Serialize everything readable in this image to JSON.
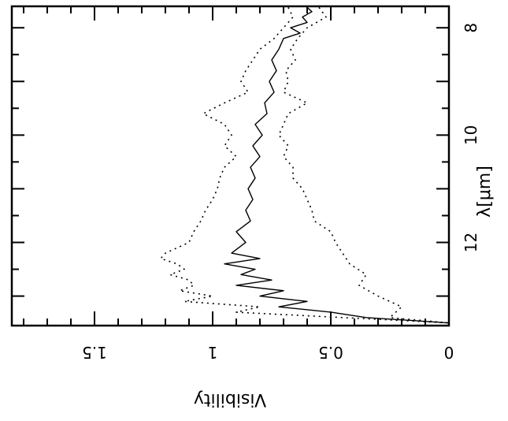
{
  "chart_data": {
    "type": "line",
    "orientation": "rotated-90-clockwise",
    "xlabel": "λ[μm]",
    "ylabel": "Visibility",
    "xlim": [
      7.6,
      13.55
    ],
    "ylim": [
      0,
      1.85
    ],
    "x_ticks_labeled": [
      8,
      10,
      12
    ],
    "x_ticks_all": [
      8,
      8.5,
      9,
      9.5,
      10,
      10.5,
      11,
      11.5,
      12,
      12.5,
      13
    ],
    "y_ticks_labeled": [
      0,
      0.5,
      1,
      1.5
    ],
    "y_ticks_all": [
      0,
      0.1,
      0.2,
      0.3,
      0.4,
      0.5,
      0.6,
      0.7,
      0.8,
      0.9,
      1.0,
      1.1,
      1.2,
      1.3,
      1.4,
      1.5,
      1.6,
      1.7,
      1.8
    ],
    "y_tick_display": [
      "0",
      "0.5",
      "1",
      "1.5"
    ],
    "x_tick_display": [
      "8",
      "10",
      "12"
    ],
    "grid": false,
    "series": [
      {
        "style": "solid",
        "x": [
          7.62,
          7.7,
          7.8,
          7.9,
          8.0,
          8.1,
          8.2,
          8.4,
          8.6,
          8.8,
          9.0,
          9.2,
          9.4,
          9.6,
          9.8,
          10.0,
          10.2,
          10.4,
          10.6,
          10.8,
          11.0,
          11.2,
          11.4,
          11.6,
          11.8,
          12.0,
          12.2,
          12.3,
          12.4,
          12.5,
          12.6,
          12.7,
          12.8,
          12.9,
          13.0,
          13.1,
          13.2,
          13.3,
          13.4,
          13.5
        ],
        "y": [
          0.6,
          0.58,
          0.62,
          0.6,
          0.67,
          0.63,
          0.7,
          0.72,
          0.75,
          0.73,
          0.76,
          0.74,
          0.78,
          0.77,
          0.82,
          0.79,
          0.83,
          0.8,
          0.84,
          0.82,
          0.85,
          0.83,
          0.86,
          0.84,
          0.9,
          0.86,
          0.92,
          0.8,
          0.95,
          0.82,
          0.88,
          0.75,
          0.9,
          0.7,
          0.8,
          0.6,
          0.72,
          0.5,
          0.35,
          0.0
        ]
      },
      {
        "style": "dotted",
        "x": [
          7.62,
          7.8,
          8.0,
          8.2,
          8.4,
          8.6,
          8.8,
          9.0,
          9.2,
          9.4,
          9.6,
          9.8,
          10.0,
          10.2,
          10.4,
          10.6,
          10.8,
          11.0,
          11.2,
          11.4,
          11.6,
          11.8,
          12.0,
          12.2,
          12.3,
          12.4,
          12.5,
          12.6,
          12.7,
          12.8,
          12.9,
          13.0,
          13.1,
          13.2,
          13.3,
          13.4,
          13.5
        ],
        "y": [
          0.68,
          0.66,
          0.7,
          0.74,
          0.8,
          0.83,
          0.86,
          0.88,
          0.85,
          0.95,
          1.04,
          0.95,
          0.92,
          0.95,
          0.9,
          0.95,
          0.97,
          0.98,
          1.0,
          1.03,
          1.05,
          1.08,
          1.1,
          1.2,
          1.22,
          1.15,
          1.12,
          1.18,
          1.1,
          1.08,
          1.14,
          1.0,
          1.12,
          0.8,
          0.9,
          0.45,
          0.0
        ]
      },
      {
        "style": "dotted",
        "x": [
          7.62,
          7.8,
          8.0,
          8.2,
          8.4,
          8.6,
          8.8,
          9.0,
          9.2,
          9.4,
          9.6,
          9.8,
          10.0,
          10.2,
          10.4,
          10.6,
          10.8,
          11.0,
          11.2,
          11.4,
          11.6,
          11.8,
          12.0,
          12.2,
          12.4,
          12.6,
          12.8,
          13.0,
          13.2,
          13.4,
          13.5
        ],
        "y": [
          0.55,
          0.52,
          0.6,
          0.64,
          0.67,
          0.65,
          0.69,
          0.68,
          0.7,
          0.6,
          0.68,
          0.7,
          0.72,
          0.68,
          0.7,
          0.66,
          0.66,
          0.62,
          0.6,
          0.58,
          0.57,
          0.5,
          0.48,
          0.45,
          0.42,
          0.35,
          0.38,
          0.3,
          0.2,
          0.25,
          0.0
        ]
      }
    ]
  }
}
